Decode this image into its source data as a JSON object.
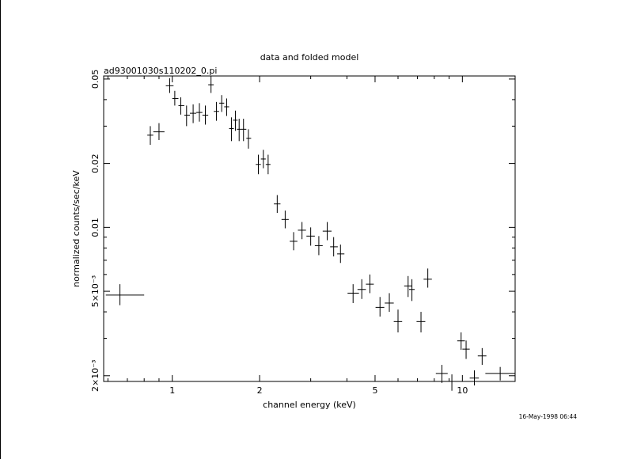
{
  "chart_data": {
    "type": "scatter",
    "title": "data and folded model",
    "subtitle": "ad93001030s110202_0.pi",
    "xlabel": "channel energy (keV)",
    "ylabel": "normalized counts/sec/keV",
    "x_scale": "log",
    "y_scale": "log",
    "xlim": [
      0.58,
      15.2
    ],
    "ylim": [
      0.00188,
      0.0517
    ],
    "grid": false,
    "legend": "none",
    "x_ticks": [
      {
        "value": 1,
        "label": "1"
      },
      {
        "value": 2,
        "label": "2"
      },
      {
        "value": 5,
        "label": "5"
      },
      {
        "value": 10,
        "label": "10"
      }
    ],
    "y_ticks": [
      {
        "value": 0.05,
        "label": "0.05"
      },
      {
        "value": 0.02,
        "label": "0.02"
      },
      {
        "value": 0.01,
        "label": "0.01"
      },
      {
        "value": 0.005,
        "label": "5×10⁻³"
      },
      {
        "value": 0.002,
        "label": "2×10⁻³"
      }
    ],
    "series": [
      {
        "points": [
          {
            "x": 0.66,
            "xlo": 0.59,
            "xhi": 0.8,
            "y": 0.0048,
            "ylo": 0.0043,
            "yhi": 0.0054
          },
          {
            "x": 0.84,
            "xlo": 0.82,
            "xhi": 0.86,
            "y": 0.0272,
            "ylo": 0.0245,
            "yhi": 0.03
          },
          {
            "x": 0.9,
            "xlo": 0.86,
            "xhi": 0.94,
            "y": 0.0282,
            "ylo": 0.0258,
            "yhi": 0.031
          },
          {
            "x": 0.98,
            "xlo": 0.95,
            "xhi": 1.01,
            "y": 0.0465,
            "ylo": 0.043,
            "yhi": 0.0505
          },
          {
            "x": 1.02,
            "xlo": 1.0,
            "xhi": 1.05,
            "y": 0.0405,
            "ylo": 0.0375,
            "yhi": 0.044
          },
          {
            "x": 1.07,
            "xlo": 1.05,
            "xhi": 1.1,
            "y": 0.0375,
            "ylo": 0.034,
            "yhi": 0.041
          },
          {
            "x": 1.12,
            "xlo": 1.1,
            "xhi": 1.15,
            "y": 0.0338,
            "ylo": 0.03,
            "yhi": 0.0375
          },
          {
            "x": 1.18,
            "xlo": 1.15,
            "xhi": 1.21,
            "y": 0.0345,
            "ylo": 0.031,
            "yhi": 0.038
          },
          {
            "x": 1.24,
            "xlo": 1.21,
            "xhi": 1.27,
            "y": 0.0348,
            "ylo": 0.0315,
            "yhi": 0.0385
          },
          {
            "x": 1.3,
            "xlo": 1.27,
            "xhi": 1.33,
            "y": 0.0338,
            "ylo": 0.0305,
            "yhi": 0.0375
          },
          {
            "x": 1.36,
            "xlo": 1.33,
            "xhi": 1.39,
            "y": 0.047,
            "ylo": 0.043,
            "yhi": 0.0515
          },
          {
            "x": 1.42,
            "xlo": 1.39,
            "xhi": 1.45,
            "y": 0.0352,
            "ylo": 0.0318,
            "yhi": 0.039
          },
          {
            "x": 1.48,
            "xlo": 1.45,
            "xhi": 1.51,
            "y": 0.0385,
            "ylo": 0.035,
            "yhi": 0.042
          },
          {
            "x": 1.54,
            "xlo": 1.51,
            "xhi": 1.57,
            "y": 0.037,
            "ylo": 0.0335,
            "yhi": 0.0405
          },
          {
            "x": 1.6,
            "xlo": 1.57,
            "xhi": 1.63,
            "y": 0.0292,
            "ylo": 0.0255,
            "yhi": 0.033
          },
          {
            "x": 1.65,
            "xlo": 1.62,
            "xhi": 1.68,
            "y": 0.032,
            "ylo": 0.0285,
            "yhi": 0.0355
          },
          {
            "x": 1.7,
            "xlo": 1.67,
            "xhi": 1.73,
            "y": 0.029,
            "ylo": 0.0255,
            "yhi": 0.0325
          },
          {
            "x": 1.76,
            "xlo": 1.73,
            "xhi": 1.8,
            "y": 0.029,
            "ylo": 0.0255,
            "yhi": 0.0325
          },
          {
            "x": 1.83,
            "xlo": 1.8,
            "xhi": 1.87,
            "y": 0.0263,
            "ylo": 0.0235,
            "yhi": 0.029
          },
          {
            "x": 1.98,
            "xlo": 1.94,
            "xhi": 2.02,
            "y": 0.0198,
            "ylo": 0.0178,
            "yhi": 0.022
          },
          {
            "x": 2.06,
            "xlo": 2.02,
            "xhi": 2.1,
            "y": 0.021,
            "ylo": 0.019,
            "yhi": 0.0232
          },
          {
            "x": 2.14,
            "xlo": 2.1,
            "xhi": 2.18,
            "y": 0.0198,
            "ylo": 0.0178,
            "yhi": 0.022
          },
          {
            "x": 2.3,
            "xlo": 2.24,
            "xhi": 2.36,
            "y": 0.0129,
            "ylo": 0.0117,
            "yhi": 0.0142
          },
          {
            "x": 2.45,
            "xlo": 2.38,
            "xhi": 2.52,
            "y": 0.0109,
            "ylo": 0.0099,
            "yhi": 0.012
          },
          {
            "x": 2.62,
            "xlo": 2.54,
            "xhi": 2.7,
            "y": 0.0086,
            "ylo": 0.0078,
            "yhi": 0.0095
          },
          {
            "x": 2.8,
            "xlo": 2.71,
            "xhi": 2.89,
            "y": 0.0097,
            "ylo": 0.0088,
            "yhi": 0.0106
          },
          {
            "x": 3.0,
            "xlo": 2.9,
            "xhi": 3.1,
            "y": 0.0091,
            "ylo": 0.0082,
            "yhi": 0.01
          },
          {
            "x": 3.2,
            "xlo": 3.1,
            "xhi": 3.3,
            "y": 0.0082,
            "ylo": 0.0074,
            "yhi": 0.0091
          },
          {
            "x": 3.42,
            "xlo": 3.3,
            "xhi": 3.54,
            "y": 0.0096,
            "ylo": 0.0087,
            "yhi": 0.0106
          },
          {
            "x": 3.6,
            "xlo": 3.5,
            "xhi": 3.72,
            "y": 0.0081,
            "ylo": 0.0073,
            "yhi": 0.009
          },
          {
            "x": 3.8,
            "xlo": 3.7,
            "xhi": 3.92,
            "y": 0.0075,
            "ylo": 0.0068,
            "yhi": 0.0083
          },
          {
            "x": 4.2,
            "xlo": 4.02,
            "xhi": 4.4,
            "y": 0.0049,
            "ylo": 0.0044,
            "yhi": 0.0054
          },
          {
            "x": 4.5,
            "xlo": 4.35,
            "xhi": 4.65,
            "y": 0.0051,
            "ylo": 0.0046,
            "yhi": 0.0057
          },
          {
            "x": 4.8,
            "xlo": 4.65,
            "xhi": 4.95,
            "y": 0.0054,
            "ylo": 0.0049,
            "yhi": 0.006
          },
          {
            "x": 5.2,
            "xlo": 5.02,
            "xhi": 5.38,
            "y": 0.0042,
            "ylo": 0.0038,
            "yhi": 0.0047
          },
          {
            "x": 5.6,
            "xlo": 5.4,
            "xhi": 5.8,
            "y": 0.0044,
            "ylo": 0.004,
            "yhi": 0.0049
          },
          {
            "x": 6.0,
            "xlo": 5.8,
            "xhi": 6.2,
            "y": 0.0036,
            "ylo": 0.0032,
            "yhi": 0.0041
          },
          {
            "x": 6.5,
            "xlo": 6.3,
            "xhi": 6.7,
            "y": 0.0053,
            "ylo": 0.0047,
            "yhi": 0.0059
          },
          {
            "x": 6.7,
            "xlo": 6.55,
            "xhi": 6.85,
            "y": 0.0051,
            "ylo": 0.0045,
            "yhi": 0.0057
          },
          {
            "x": 7.2,
            "xlo": 6.95,
            "xhi": 7.45,
            "y": 0.0036,
            "ylo": 0.0032,
            "yhi": 0.004
          },
          {
            "x": 7.6,
            "xlo": 7.35,
            "xhi": 7.85,
            "y": 0.0057,
            "ylo": 0.0052,
            "yhi": 0.0064
          },
          {
            "x": 8.5,
            "xlo": 8.1,
            "xhi": 8.9,
            "y": 0.00205,
            "ylo": 0.00185,
            "yhi": 0.00225
          },
          {
            "x": 9.2,
            "xlo": 8.8,
            "xhi": 9.6,
            "y": 0.00188,
            "ylo": 0.0017,
            "yhi": 0.00203
          },
          {
            "x": 9.9,
            "xlo": 9.6,
            "xhi": 10.2,
            "y": 0.00292,
            "ylo": 0.00265,
            "yhi": 0.0032
          },
          {
            "x": 10.3,
            "xlo": 10.0,
            "xhi": 10.6,
            "y": 0.00267,
            "ylo": 0.0024,
            "yhi": 0.00293
          },
          {
            "x": 11.0,
            "xlo": 10.6,
            "xhi": 11.4,
            "y": 0.00195,
            "ylo": 0.0018,
            "yhi": 0.00212
          },
          {
            "x": 11.7,
            "xlo": 11.3,
            "xhi": 12.1,
            "y": 0.00248,
            "ylo": 0.00225,
            "yhi": 0.0027
          },
          {
            "x": 13.5,
            "xlo": 12.0,
            "xhi": 15.2,
            "y": 0.00205,
            "ylo": 0.0019,
            "yhi": 0.0022
          }
        ]
      }
    ]
  },
  "footer": {
    "timestamp": "16-May-1998 06:44"
  }
}
